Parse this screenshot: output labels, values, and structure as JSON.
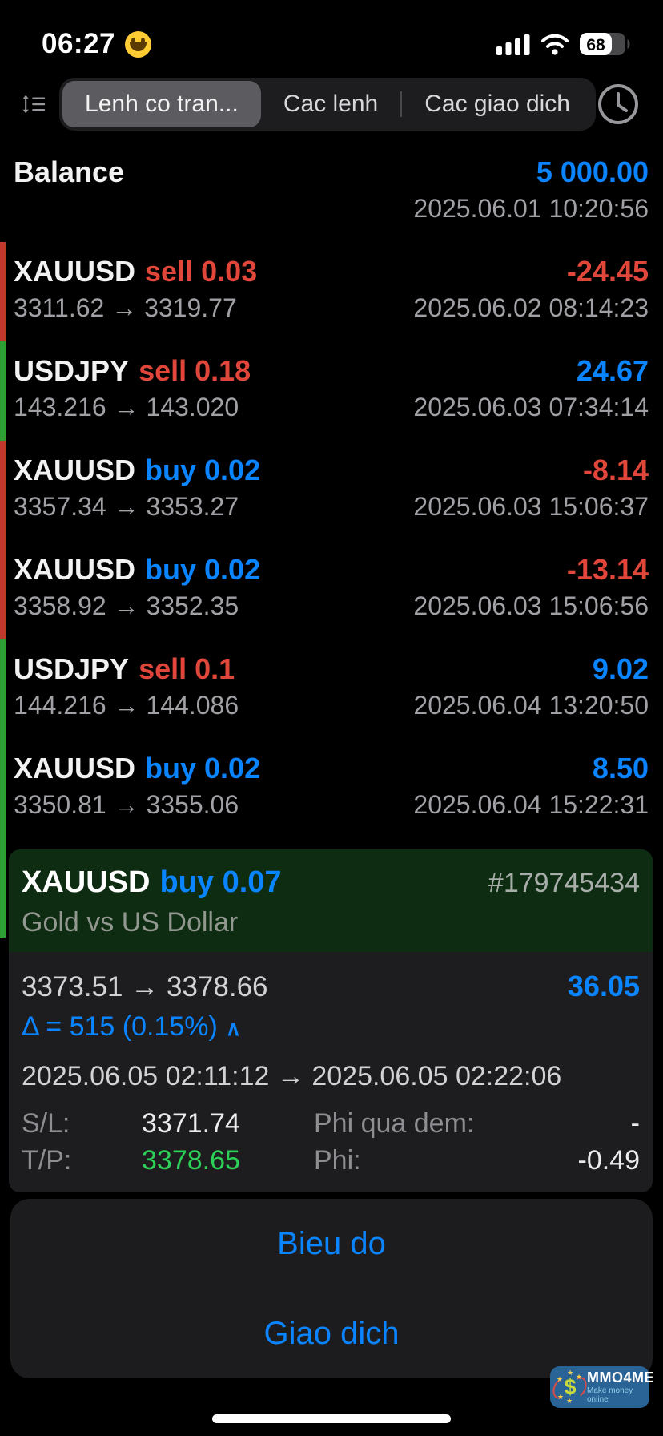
{
  "status_bar": {
    "time": "06:27",
    "emoji": "grinning-face",
    "battery_percent": "68"
  },
  "toolbar": {
    "tabs": [
      {
        "label": "Lenh co tran...",
        "selected": true
      },
      {
        "label": "Cac lenh",
        "selected": false
      },
      {
        "label": "Cac giao dich",
        "selected": false
      }
    ]
  },
  "glyphs": {
    "arrow": "→",
    "caret_up": "∧"
  },
  "balance": {
    "label": "Balance",
    "amount": "5 000.00",
    "time": "2025.06.01 10:20:56"
  },
  "trades": [
    {
      "symbol": "XAUUSD",
      "side": "sell",
      "volume": "0.03",
      "profit": "-24.45",
      "open": "3311.62",
      "close": "3319.77",
      "closed_at": "2025.06.02 08:14:23",
      "result": "loss"
    },
    {
      "symbol": "USDJPY",
      "side": "sell",
      "volume": "0.18",
      "profit": "24.67",
      "open": "143.216",
      "close": "143.020",
      "closed_at": "2025.06.03 07:34:14",
      "result": "profit"
    },
    {
      "symbol": "XAUUSD",
      "side": "buy",
      "volume": "0.02",
      "profit": "-8.14",
      "open": "3357.34",
      "close": "3353.27",
      "closed_at": "2025.06.03 15:06:37",
      "result": "loss"
    },
    {
      "symbol": "XAUUSD",
      "side": "buy",
      "volume": "0.02",
      "profit": "-13.14",
      "open": "3358.92",
      "close": "3352.35",
      "closed_at": "2025.06.03 15:06:56",
      "result": "loss"
    },
    {
      "symbol": "USDJPY",
      "side": "sell",
      "volume": "0.1",
      "profit": "9.02",
      "open": "144.216",
      "close": "144.086",
      "closed_at": "2025.06.04 13:20:50",
      "result": "profit"
    },
    {
      "symbol": "XAUUSD",
      "side": "buy",
      "volume": "0.02",
      "profit": "8.50",
      "open": "3350.81",
      "close": "3355.06",
      "closed_at": "2025.06.04 15:22:31",
      "result": "profit"
    },
    {
      "symbol": "XAUUSD",
      "side": "buy",
      "volume": "0.07",
      "profit": "",
      "open": "",
      "close": "",
      "closed_at": "",
      "result": "profit",
      "partial": true
    }
  ],
  "popup": {
    "symbol": "XAUUSD",
    "side_volume": "buy 0.07",
    "ticket": "#179745434",
    "description": "Gold vs US Dollar",
    "open": "3373.51",
    "close": "3378.66",
    "profit": "36.05",
    "delta": "Δ = 515 (0.15%)",
    "open_time": "2025.06.05 02:11:12",
    "close_time": "2025.06.05 02:22:06",
    "sl_label": "S/L:",
    "sl_value": "3371.74",
    "swap_label": "Phi qua dem:",
    "swap_value": "-",
    "tp_label": "T/P:",
    "tp_value": "3378.65",
    "fee_label": "Phi:",
    "fee_value": "-0.49"
  },
  "actions": [
    {
      "label": "Bieu do"
    },
    {
      "label": "Giao dich"
    }
  ],
  "watermark": {
    "title": "MMO4ME",
    "subtitle": "Make money online"
  },
  "colors": {
    "accent_blue": "#0a84ff",
    "loss_red": "#e0473a",
    "bar_red": "#c03a2b",
    "bar_green": "#2f9e33",
    "tp_green": "#2ed158",
    "popup_header_green": "#0d2c12",
    "panel_gray": "#1c1c1e"
  }
}
